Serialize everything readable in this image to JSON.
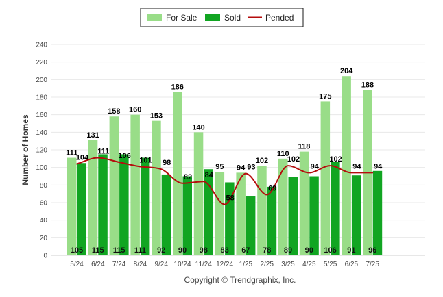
{
  "chart_data": {
    "type": "bar",
    "title": "",
    "xlabel": "",
    "ylabel": "Number of Homes",
    "ylim": [
      0,
      240
    ],
    "yticks": [
      0,
      20,
      40,
      60,
      80,
      100,
      120,
      140,
      160,
      180,
      200,
      220,
      240
    ],
    "grid": true,
    "legend_position": "top-center",
    "categories": [
      "5/24",
      "6/24",
      "7/24",
      "8/24",
      "9/24",
      "10/24",
      "11/24",
      "12/24",
      "1/25",
      "2/25",
      "3/25",
      "4/25",
      "5/25",
      "6/25",
      "7/25"
    ],
    "series": [
      {
        "name": "For Sale",
        "kind": "bar",
        "color": "#99dd88",
        "values": [
          111,
          131,
          158,
          160,
          153,
          186,
          140,
          95,
          94,
          102,
          110,
          118,
          175,
          204,
          188
        ]
      },
      {
        "name": "Sold",
        "kind": "bar",
        "color": "#11a522",
        "values": [
          105,
          115,
          115,
          111,
          92,
          90,
          98,
          83,
          67,
          78,
          89,
          90,
          106,
          91,
          96
        ]
      },
      {
        "name": "Pended",
        "kind": "line",
        "color": "#b50d0d",
        "values": [
          104,
          111,
          106,
          101,
          98,
          82,
          84,
          58,
          93,
          69,
          102,
          94,
          102,
          94,
          94
        ]
      }
    ]
  },
  "footer": {
    "copyright": "Copyright © Trendgraphix, Inc."
  }
}
